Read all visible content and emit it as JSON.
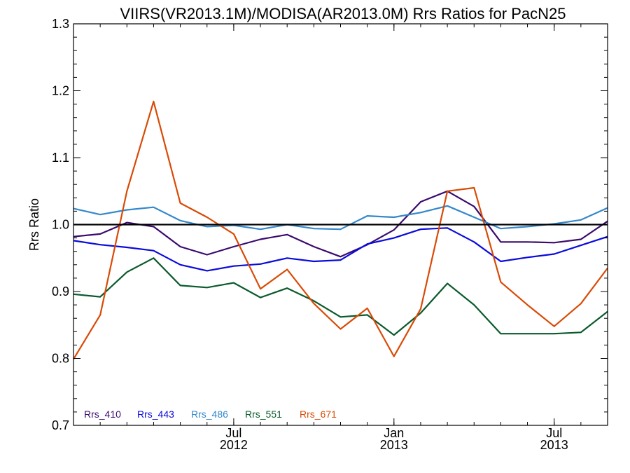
{
  "chart_data": {
    "type": "line",
    "title": "VIIRS(VR2013.1M)/MODISA(AR2013.0M)  Rrs Ratios for PacN25",
    "xlabel": "",
    "ylabel": "Rrs Ratio",
    "ylim": [
      0.7,
      1.3
    ],
    "yticks": [
      "0.7",
      "0.8",
      "0.9",
      "1.0",
      "1.1",
      "1.2",
      "1.3"
    ],
    "xticks": [
      {
        "month": "Jul",
        "year": "2012"
      },
      {
        "month": "Jan",
        "year": "2013"
      },
      {
        "month": "Jul",
        "year": "2013"
      }
    ],
    "reference_line": 1.0,
    "grid": false,
    "legend_position": "bottom-left",
    "x": [
      "2012-01",
      "2012-02",
      "2012-03",
      "2012-04",
      "2012-05",
      "2012-06",
      "2012-07",
      "2012-08",
      "2012-09",
      "2012-10",
      "2012-11",
      "2012-12",
      "2013-01",
      "2013-02",
      "2013-03",
      "2013-04",
      "2013-05",
      "2013-06",
      "2013-07",
      "2013-08",
      "2013-09"
    ],
    "series": [
      {
        "name": "Rrs_410",
        "color": "#3b0a6e",
        "values": [
          0.982,
          0.986,
          1.003,
          0.997,
          0.967,
          0.955,
          0.967,
          0.978,
          0.985,
          0.967,
          0.952,
          0.97,
          0.992,
          1.034,
          1.05,
          1.027,
          0.974,
          0.974,
          0.973,
          0.978,
          1.005
        ]
      },
      {
        "name": "Rrs_443",
        "color": "#0a0adc",
        "values": [
          0.976,
          0.97,
          0.966,
          0.961,
          0.94,
          0.931,
          0.938,
          0.941,
          0.95,
          0.945,
          0.947,
          0.971,
          0.98,
          0.993,
          0.995,
          0.974,
          0.945,
          0.951,
          0.956,
          0.969,
          0.982
        ]
      },
      {
        "name": "Rrs_486",
        "color": "#3388cc",
        "values": [
          1.024,
          1.015,
          1.022,
          1.026,
          1.006,
          0.997,
          0.999,
          0.993,
          1.0,
          0.994,
          0.993,
          1.013,
          1.011,
          1.018,
          1.028,
          1.011,
          0.994,
          0.997,
          1.001,
          1.007,
          1.025
        ]
      },
      {
        "name": "Rrs_551",
        "color": "#0b5a2c",
        "values": [
          0.896,
          0.892,
          0.929,
          0.95,
          0.909,
          0.906,
          0.913,
          0.891,
          0.905,
          0.886,
          0.862,
          0.865,
          0.835,
          0.868,
          0.912,
          0.88,
          0.837,
          0.837,
          0.837,
          0.839,
          0.87
        ]
      },
      {
        "name": "Rrs_671",
        "color": "#d94a06",
        "values": [
          0.799,
          0.865,
          1.05,
          1.184,
          1.032,
          1.011,
          0.986,
          0.904,
          0.933,
          0.882,
          0.844,
          0.875,
          0.803,
          0.874,
          1.05,
          1.055,
          0.914,
          0.88,
          0.848,
          0.882,
          0.935
        ]
      }
    ]
  }
}
